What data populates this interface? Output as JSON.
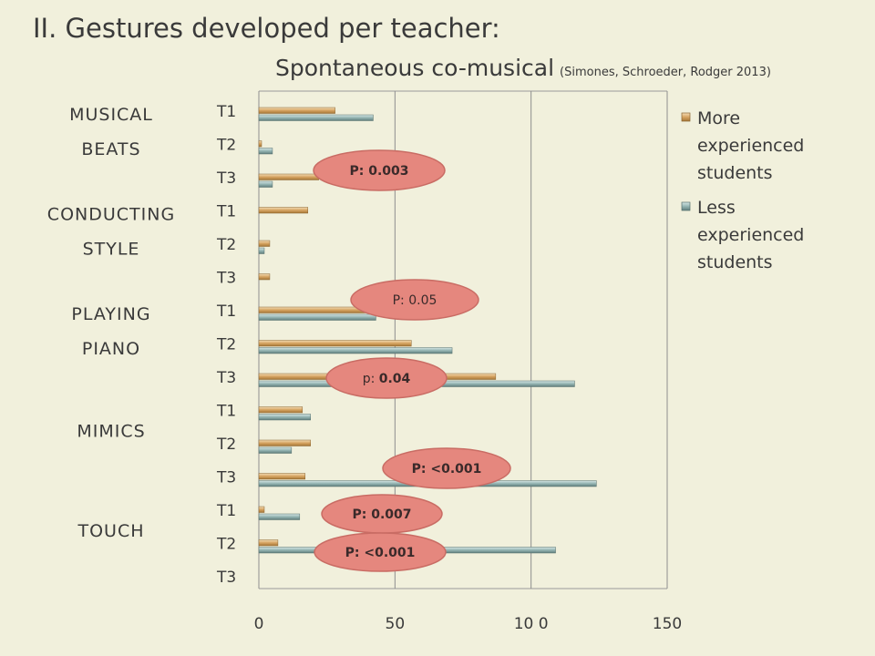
{
  "page": {
    "title": "II. Gestures developed per teacher:",
    "subtitle": "Spontaneous co-musical",
    "citation": "(Simones, Schroeder, Rodger 2013)"
  },
  "chart_data": {
    "type": "bar",
    "orientation": "horizontal",
    "title": "",
    "xlabel": "",
    "ylabel": "",
    "xlim": [
      0,
      150
    ],
    "x_ticks": [
      0,
      50,
      100,
      150
    ],
    "x_tick_labels": [
      "0",
      "50",
      "10 0",
      "150"
    ],
    "grid": "vertical",
    "legend_position": "right",
    "colors": {
      "more": "#d0a05c",
      "less": "#8fb0ae",
      "p_ellipse": "#e5877e",
      "p_ellipse_border": "#c96c64"
    },
    "groups": [
      {
        "name_lines": [
          "MUSICAL",
          "BEATS"
        ],
        "teachers": [
          "T1",
          "T2",
          "T3"
        ],
        "more": [
          28,
          1,
          22
        ],
        "less": [
          42,
          5,
          5
        ]
      },
      {
        "name_lines": [
          "CONDUCTING",
          "STYLE"
        ],
        "teachers": [
          "T1",
          "T2",
          "T3"
        ],
        "more": [
          18,
          4,
          4
        ],
        "less": [
          0,
          2,
          0
        ]
      },
      {
        "name_lines": [
          "PLAYING",
          "PIANO"
        ],
        "teachers": [
          "T1",
          "T2",
          "T3"
        ],
        "more": [
          40,
          56,
          87
        ],
        "less": [
          43,
          71,
          116
        ]
      },
      {
        "name_lines": [
          "MIMICS"
        ],
        "teachers": [
          "T1",
          "T2",
          "T3"
        ],
        "more": [
          16,
          19,
          17
        ],
        "less": [
          19,
          12,
          124
        ]
      },
      {
        "name_lines": [
          "TOUCH"
        ],
        "teachers": [
          "T1",
          "T2",
          "T3"
        ],
        "more": [
          2,
          7,
          0
        ],
        "less": [
          15,
          109,
          0
        ]
      }
    ],
    "series": [
      {
        "key": "more",
        "name_lines": [
          "More",
          "experienced",
          "students"
        ]
      },
      {
        "key": "less",
        "name_lines": [
          "Less",
          "experienced",
          "students"
        ]
      }
    ],
    "annotations": [
      {
        "group": 0,
        "teacher": 2,
        "text": "P: 0.003",
        "bold": true
      },
      {
        "group": 2,
        "teacher": 0,
        "text": "P: 0.05",
        "bold": false
      },
      {
        "group": 2,
        "teacher": 2,
        "prefix": "p: ",
        "text": "0.04",
        "bold": true
      },
      {
        "group": 3,
        "teacher": 2,
        "text": "P: <0.001",
        "bold": true
      },
      {
        "group": 4,
        "teacher": 0,
        "text": "P: 0.007",
        "bold": true
      },
      {
        "group": 4,
        "teacher": 1,
        "text": "P: <0.001",
        "bold": true
      }
    ]
  }
}
